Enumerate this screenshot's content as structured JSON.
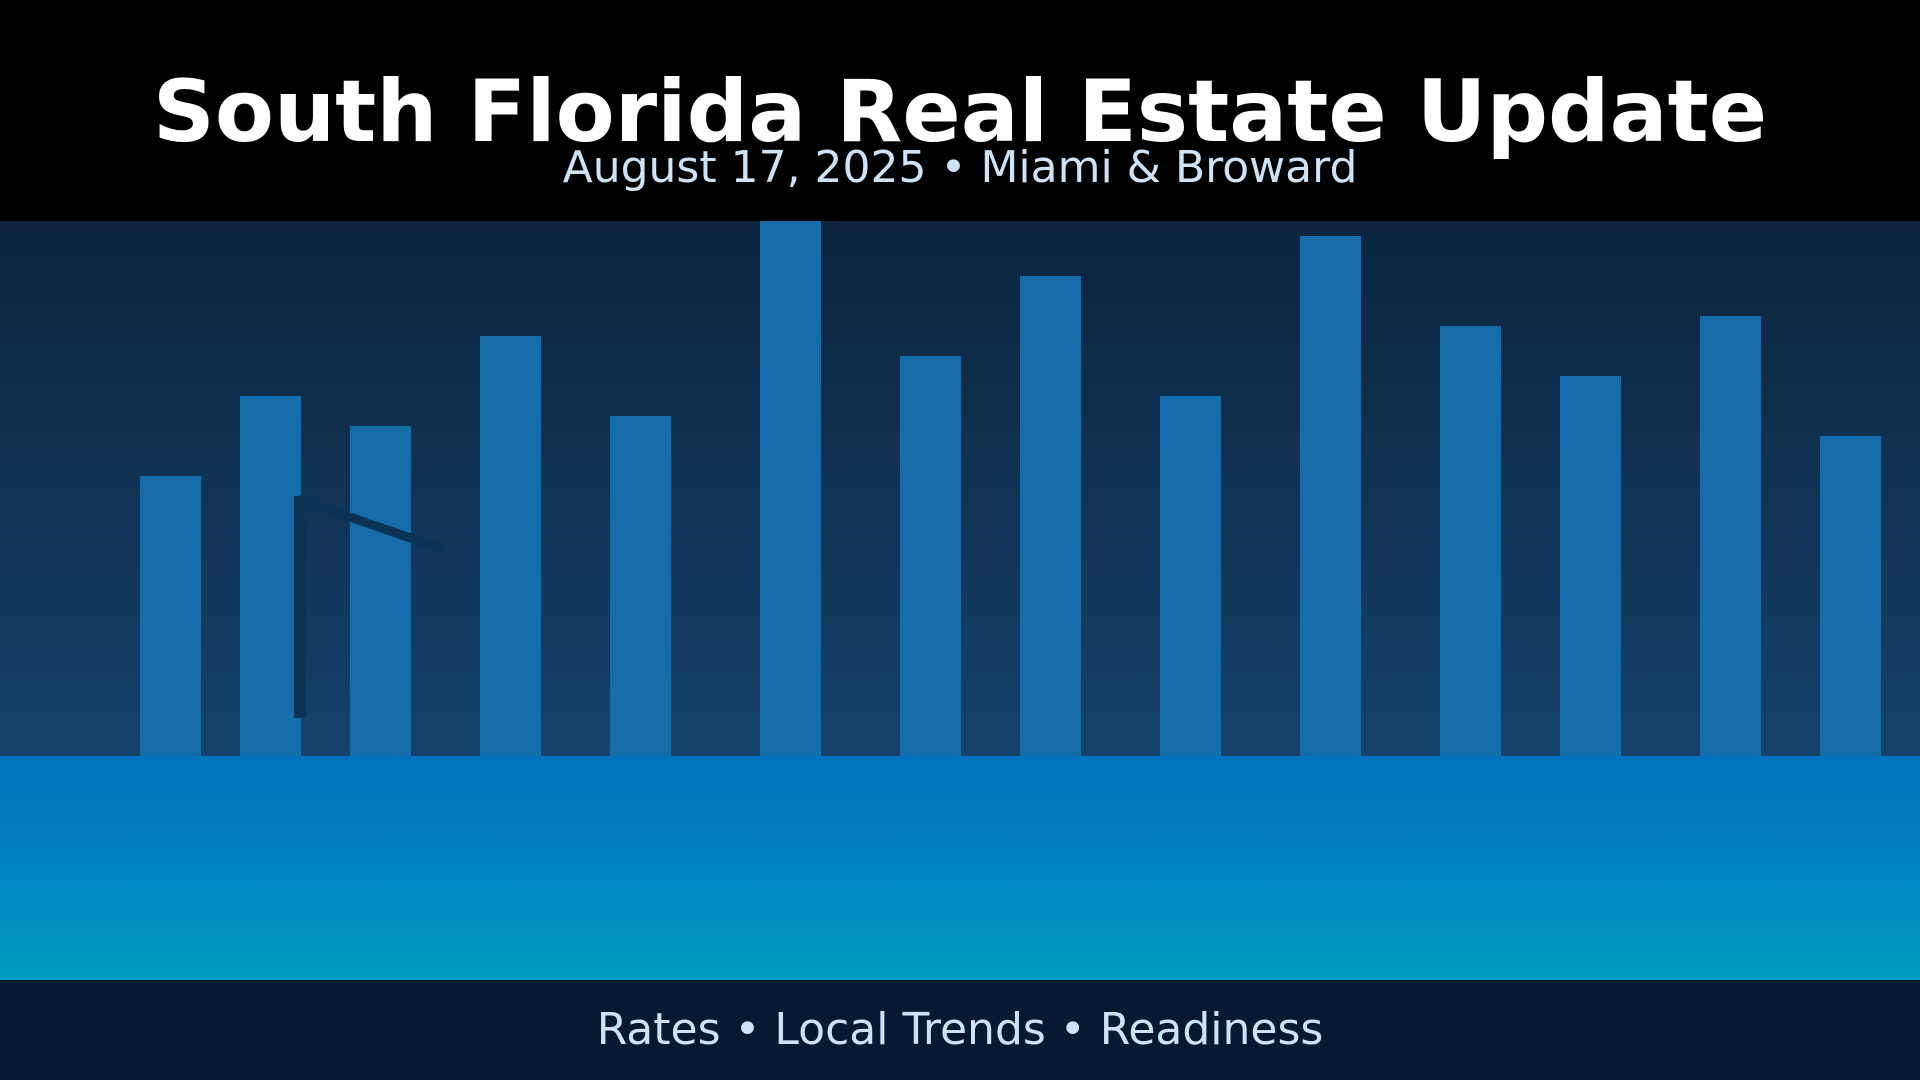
{
  "header": {
    "title": "South Florida Real Estate Update",
    "subtitle": "August 17, 2025 • Miami & Broward"
  },
  "footer": {
    "tagline": "Rates • Local Trends • Readiness"
  },
  "colors": {
    "header_bg": "#000000",
    "sky_top": "#0c243e",
    "sky_bottom": "#15416a",
    "building": "#166ca8",
    "crane": "#0a3356",
    "water_top": "#0072bd",
    "water_bottom": "#009cc0",
    "footer_bg": "#041a30",
    "text_primary": "#ffffff",
    "text_secondary": "#cfe3f7"
  },
  "icons": {
    "skyline": "city-skyline-illustration",
    "crane": "construction-crane-icon"
  }
}
